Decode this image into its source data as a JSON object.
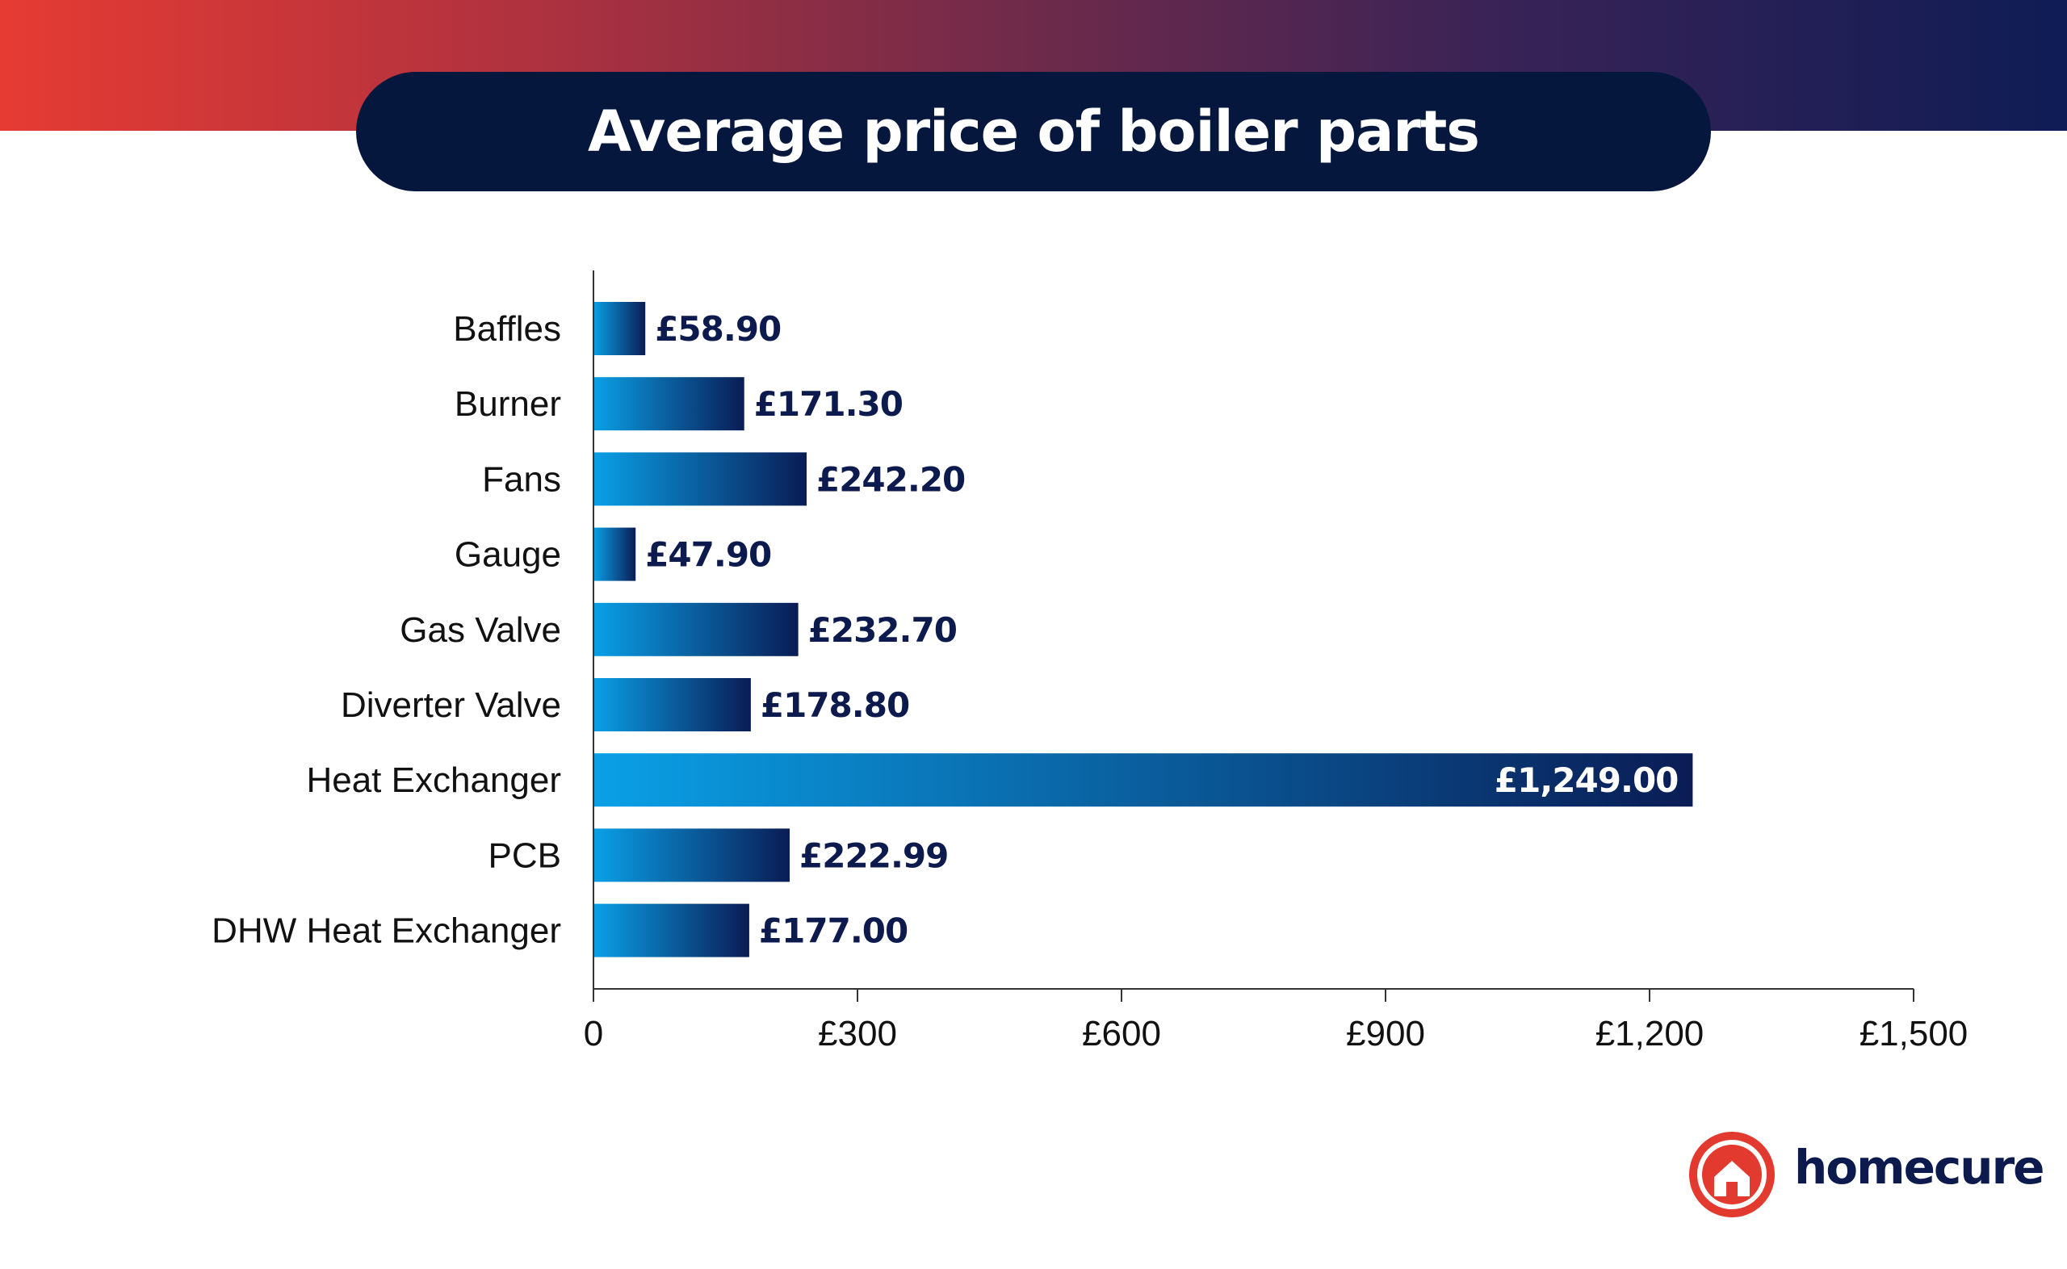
{
  "title": "Average price of boiler parts",
  "brand": {
    "name": "homecure",
    "logo_icon": "house-icon",
    "accent": "#e33a2f",
    "text_color": "#0c1a4d"
  },
  "colors": {
    "bar_start": "#0aa0e6",
    "bar_end": "#0a1c55",
    "label_dark": "#0c1a4d",
    "title_bg": "#05173d"
  },
  "chart_data": {
    "type": "bar",
    "orientation": "horizontal",
    "title": "Average price of boiler parts",
    "xlabel": "",
    "ylabel": "",
    "xlim": [
      0,
      1500
    ],
    "categories": [
      "Baffles",
      "Burner",
      "Fans",
      "Gauge",
      "Gas Valve",
      "Diverter Valve",
      "Heat Exchanger",
      "PCB",
      "DHW Heat Exchanger"
    ],
    "values": [
      58.9,
      171.3,
      242.2,
      47.9,
      232.7,
      178.8,
      1249.0,
      222.99,
      177.0
    ],
    "value_labels": [
      "£58.90",
      "£171.30",
      "£242.20",
      "£47.90",
      "£232.70",
      "£178.80",
      "£1,249.00",
      "£222.99",
      "£177.00"
    ],
    "x_ticks": [
      0,
      300,
      600,
      900,
      1200,
      1500
    ],
    "x_tick_labels": [
      "0",
      "£300",
      "£600",
      "£900",
      "£1,200",
      "£1,500"
    ],
    "grid": false,
    "legend": "none"
  }
}
